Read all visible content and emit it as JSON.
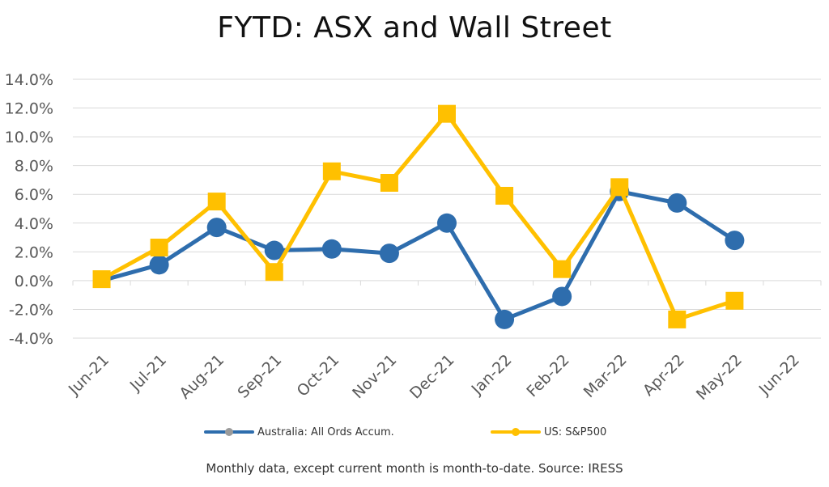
{
  "chart_data": {
    "type": "line",
    "title": "FYTD: ASX and Wall Street",
    "categories": [
      "Jun-21",
      "Jul-21",
      "Aug-21",
      "Sep-21",
      "Oct-21",
      "Nov-21",
      "Dec-21",
      "Jan-22",
      "Feb-22",
      "Mar-22",
      "Apr-22",
      "May-22",
      "Jun-22"
    ],
    "y_tick_labels": [
      "14.0%",
      "12.0%",
      "10.0%",
      "8.0%",
      "6.0%",
      "4.0%",
      "2.0%",
      "0.0%",
      "-2.0%",
      "-4.0%"
    ],
    "ylim": [
      -4,
      14
    ],
    "y_unit": "%",
    "grid": true,
    "legend_position": "bottom",
    "series": [
      {
        "name": "Australia: All Ords Accum.",
        "color": "#2E6DAD",
        "marker": "circle",
        "values": [
          0.0,
          1.1,
          3.7,
          2.1,
          2.2,
          1.9,
          4.0,
          -2.7,
          -1.1,
          6.2,
          5.4,
          2.8,
          null
        ]
      },
      {
        "name": "US: S&P500",
        "color": "#FFC000",
        "marker": "square",
        "values": [
          0.1,
          2.3,
          5.5,
          0.6,
          7.6,
          6.8,
          11.6,
          5.9,
          0.8,
          6.5,
          -2.7,
          -1.4,
          null
        ]
      }
    ],
    "footnote": "Monthly data, except current month is month-to-date.  Source: IRESS"
  },
  "colors": {
    "grid": "#d9d9d9",
    "axis_text": "#595959"
  }
}
